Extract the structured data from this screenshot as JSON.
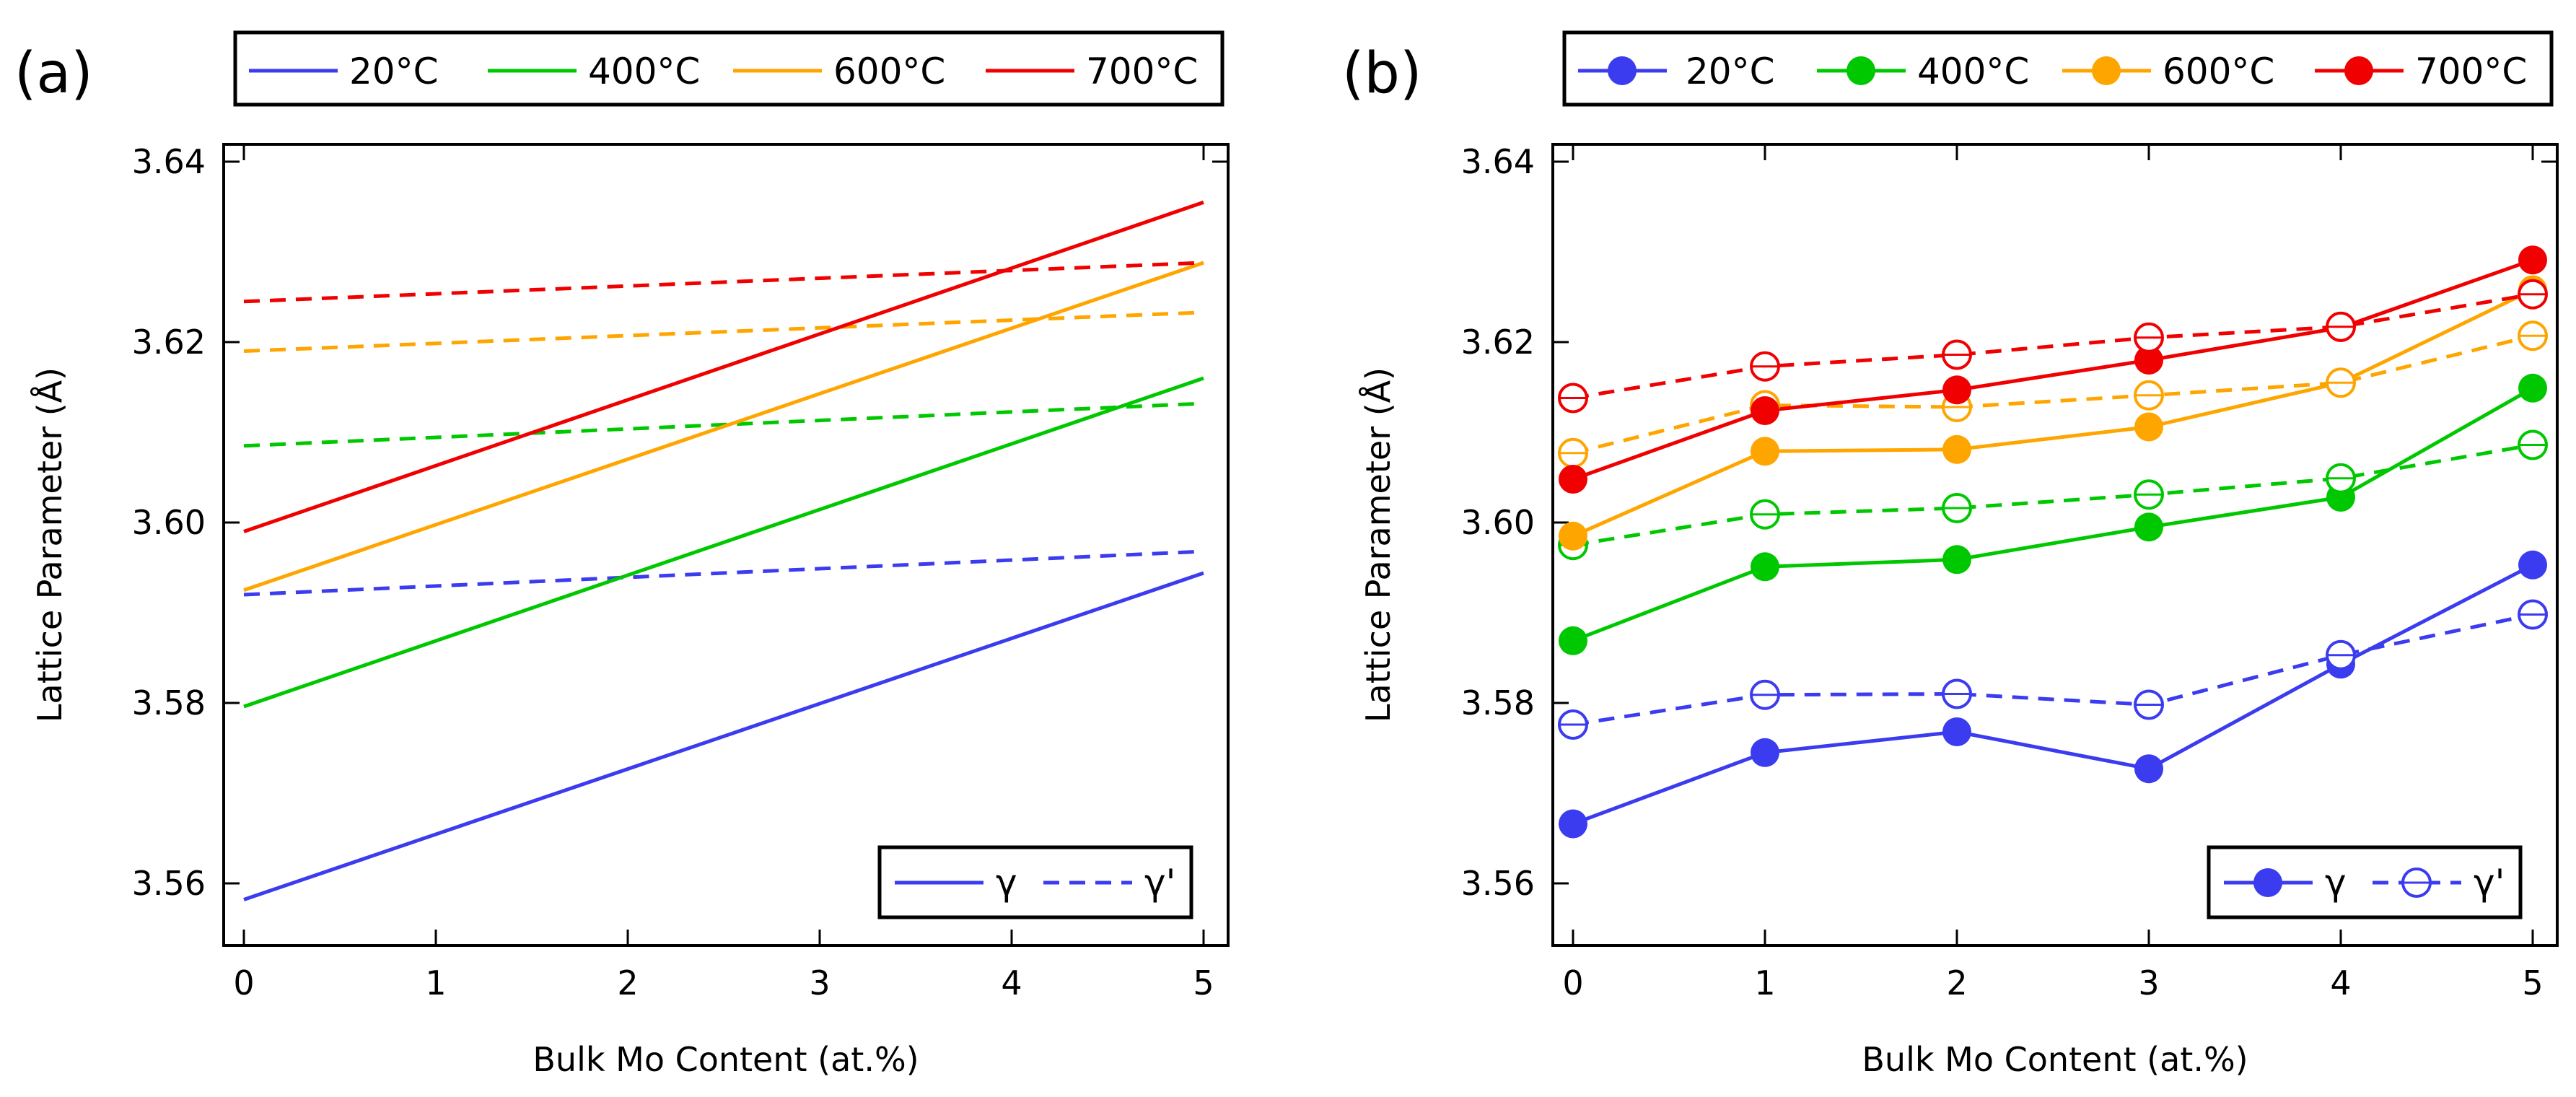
{
  "colors": {
    "20C": "#3b3bf0",
    "400C": "#00c800",
    "600C": "#ffa500",
    "700C": "#f00000"
  },
  "chart_data": [
    {
      "panel": "(a)",
      "type": "line",
      "xlabel": "Bulk Mo Content (at.%)",
      "ylabel": "Lattice Parameter (Å)",
      "xlim": [
        0,
        5
      ],
      "ylim": [
        3.553,
        3.643
      ],
      "xticks": [
        "0",
        "1",
        "2",
        "3",
        "4",
        "5"
      ],
      "yticks": [
        "3.56",
        "3.58",
        "3.60",
        "3.62",
        "3.64"
      ],
      "legend_top": [
        "20°C",
        "400°C",
        "600°C",
        "700°C"
      ],
      "legend_phase": [
        "γ",
        "γ'"
      ],
      "series": [
        {
          "name": "20°C γ",
          "temp": "20C",
          "phase": "gamma",
          "x": [
            0,
            5
          ],
          "values": [
            3.5582,
            3.5944
          ]
        },
        {
          "name": "20°C γ'",
          "temp": "20C",
          "phase": "gamma_prime",
          "x": [
            0,
            5
          ],
          "values": [
            3.592,
            3.5968
          ]
        },
        {
          "name": "400°C γ",
          "temp": "400C",
          "phase": "gamma",
          "x": [
            0,
            5
          ],
          "values": [
            3.5796,
            3.616
          ]
        },
        {
          "name": "400°C γ'",
          "temp": "400C",
          "phase": "gamma_prime",
          "x": [
            0,
            5
          ],
          "values": [
            3.6085,
            3.6132
          ]
        },
        {
          "name": "600°C γ",
          "temp": "600C",
          "phase": "gamma",
          "x": [
            0,
            5
          ],
          "values": [
            3.5925,
            3.6288
          ]
        },
        {
          "name": "600°C γ'",
          "temp": "600C",
          "phase": "gamma_prime",
          "x": [
            0,
            5
          ],
          "values": [
            3.619,
            3.6233
          ]
        },
        {
          "name": "700°C γ",
          "temp": "700C",
          "phase": "gamma",
          "x": [
            0,
            5
          ],
          "values": [
            3.599,
            3.6355
          ]
        },
        {
          "name": "700°C γ'",
          "temp": "700C",
          "phase": "gamma_prime",
          "x": [
            0,
            5
          ],
          "values": [
            3.6245,
            3.6288
          ]
        }
      ]
    },
    {
      "panel": "(b)",
      "type": "line",
      "xlabel": "Bulk Mo Content (at.%)",
      "ylabel": "Lattice Parameter (Å)",
      "xlim": [
        0,
        5
      ],
      "ylim": [
        3.553,
        3.643
      ],
      "xticks": [
        "0",
        "1",
        "2",
        "3",
        "4",
        "5"
      ],
      "yticks": [
        "3.56",
        "3.58",
        "3.60",
        "3.62",
        "3.64"
      ],
      "legend_top": [
        "20°C",
        "400°C",
        "600°C",
        "700°C"
      ],
      "legend_phase": [
        "γ",
        "γ'"
      ],
      "series": [
        {
          "name": "20°C γ",
          "temp": "20C",
          "phase": "gamma",
          "x": [
            0,
            1,
            2,
            3,
            4,
            5
          ],
          "values": [
            3.5666,
            3.5745,
            3.5768,
            3.5727,
            3.5843,
            3.5953
          ]
        },
        {
          "name": "20°C γ'",
          "temp": "20C",
          "phase": "gamma_prime",
          "x": [
            0,
            1,
            2,
            3,
            4,
            5
          ],
          "values": [
            3.5776,
            3.5809,
            3.581,
            3.5798,
            3.5853,
            3.5898
          ]
        },
        {
          "name": "400°C γ",
          "temp": "400C",
          "phase": "gamma",
          "x": [
            0,
            1,
            2,
            3,
            4,
            5
          ],
          "values": [
            3.5869,
            3.5951,
            3.5959,
            3.5995,
            3.6028,
            3.6149
          ]
        },
        {
          "name": "400°C γ'",
          "temp": "400C",
          "phase": "gamma_prime",
          "x": [
            0,
            1,
            2,
            3,
            4,
            5
          ],
          "values": [
            3.5975,
            3.6009,
            3.6016,
            3.6031,
            3.6049,
            3.6086
          ]
        },
        {
          "name": "600°C γ",
          "temp": "600C",
          "phase": "gamma",
          "x": [
            0,
            1,
            2,
            3,
            4,
            5
          ],
          "values": [
            3.5985,
            3.6079,
            3.6081,
            3.6106,
            3.6155,
            3.6258
          ]
        },
        {
          "name": "600°C γ'",
          "temp": "600C",
          "phase": "gamma_prime",
          "x": [
            0,
            1,
            2,
            3,
            4,
            5
          ],
          "values": [
            3.6077,
            3.613,
            3.6128,
            3.6141,
            3.6155,
            3.6207
          ]
        },
        {
          "name": "700°C γ",
          "temp": "700C",
          "phase": "gamma",
          "x": [
            0,
            1,
            2,
            3,
            4,
            5
          ],
          "values": [
            3.6048,
            3.6124,
            3.6147,
            3.618,
            3.6216,
            3.6291
          ]
        },
        {
          "name": "700°C γ'",
          "temp": "700C",
          "phase": "gamma_prime",
          "x": [
            0,
            1,
            2,
            3,
            4,
            5
          ],
          "values": [
            3.6138,
            3.6173,
            3.6186,
            3.6205,
            3.6217,
            3.6253
          ]
        }
      ]
    }
  ]
}
